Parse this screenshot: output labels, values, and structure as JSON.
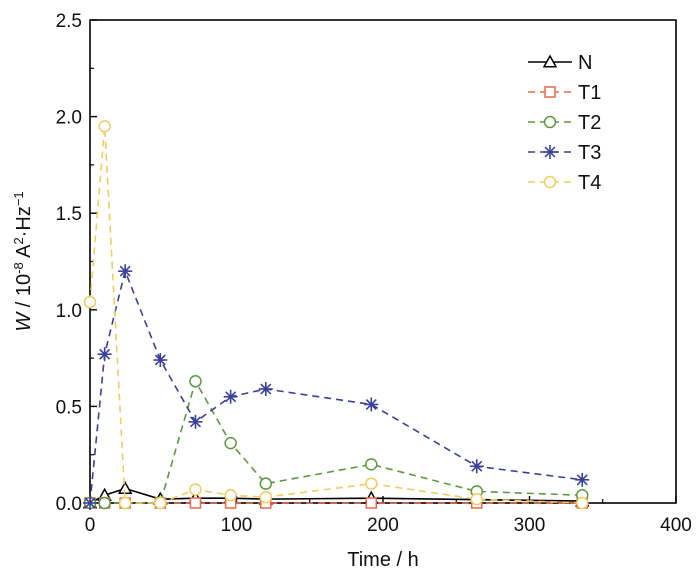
{
  "chart_data": {
    "type": "line",
    "title": "",
    "xlabel": "Time / h",
    "ylabel": {
      "symbol": "W",
      "sep": " / 10",
      "exp1": "-8",
      "unit1": " A",
      "exp2": "2",
      "unit2": "·Hz",
      "exp3": "−1"
    },
    "xlim": [
      0,
      400
    ],
    "ylim": [
      0,
      2.5
    ],
    "xticks": [
      0,
      100,
      200,
      300,
      400
    ],
    "yticks": [
      0.0,
      0.5,
      1.0,
      1.5,
      2.0,
      2.5
    ],
    "xtick_labels": [
      "0",
      "100",
      "200",
      "300",
      "400"
    ],
    "ytick_labels": [
      "0.0",
      "0.5",
      "1.0",
      "1.5",
      "2.0",
      "2.5"
    ],
    "grid": false,
    "legend_position": "top-right",
    "series": [
      {
        "name": "N",
        "color": "#000000",
        "marker": "triangle",
        "line": "solid",
        "x": [
          0,
          10,
          24,
          48,
          72,
          96,
          120,
          192,
          336
        ],
        "y": [
          0.0,
          0.04,
          0.075,
          0.02,
          0.025,
          0.025,
          0.02,
          0.025,
          0.01
        ]
      },
      {
        "name": "T1",
        "color": "#e8684a",
        "marker": "square",
        "line": "dashed",
        "x": [
          0,
          10,
          24,
          48,
          72,
          96,
          120,
          192,
          264,
          336
        ],
        "y": [
          0.0,
          0.0,
          0.0,
          0.0,
          0.0,
          0.0,
          0.0,
          0.0,
          0.0,
          0.0
        ]
      },
      {
        "name": "T2",
        "color": "#5a9a3c",
        "marker": "circle",
        "line": "dashed",
        "x": [
          0,
          10,
          24,
          48,
          72,
          96,
          120,
          192,
          264,
          336
        ],
        "y": [
          0.0,
          0.0,
          0.0,
          0.0,
          0.63,
          0.31,
          0.1,
          0.2,
          0.06,
          0.04
        ]
      },
      {
        "name": "T3",
        "color": "#3a3f9a",
        "marker": "asterisk",
        "line": "dashed",
        "x": [
          0,
          10,
          24,
          48,
          72,
          96,
          120,
          192,
          264,
          336
        ],
        "y": [
          0.0,
          0.77,
          1.2,
          0.74,
          0.42,
          0.55,
          0.59,
          0.51,
          0.19,
          0.12
        ]
      },
      {
        "name": "T4",
        "color": "#f2cc5e",
        "marker": "circle",
        "line": "dashed",
        "x": [
          0,
          10,
          24,
          48,
          72,
          96,
          120,
          192,
          264,
          336
        ],
        "y": [
          1.04,
          1.95,
          0.0,
          0.0,
          0.07,
          0.04,
          0.03,
          0.1,
          0.02,
          0.0
        ]
      }
    ]
  }
}
